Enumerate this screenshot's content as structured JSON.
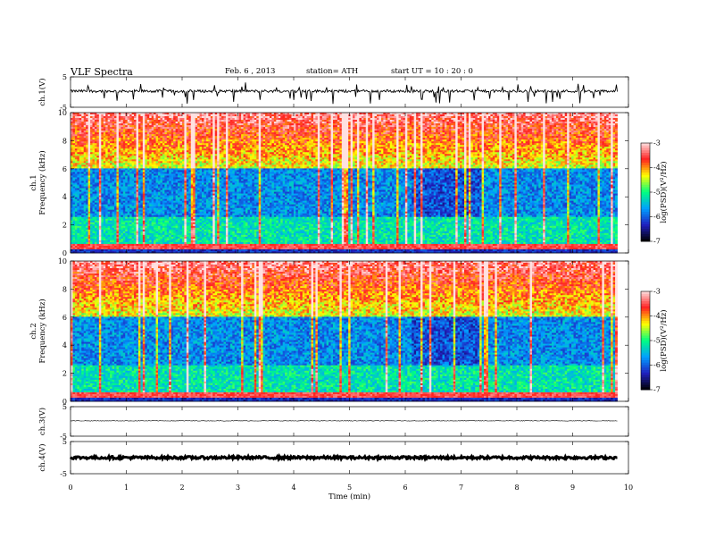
{
  "header": {
    "title": "VLF  Spectra",
    "date": "Feb. 6  , 2013",
    "station": "station= ATH",
    "start": "start  UT  =    10 : 20 : 0"
  },
  "chart_data": [
    {
      "type": "line",
      "name": "ch1-waveform",
      "ylabel": "ch.1(V)",
      "ylim": [
        -5,
        5
      ],
      "yticks": [
        "5",
        "-5"
      ],
      "xlim": [
        0,
        10
      ],
      "x_end": 9.8,
      "baseline": 0.3
    },
    {
      "type": "heatmap",
      "name": "ch1-spectrogram",
      "ylabel": "ch.1\nFrequency (kHz)",
      "ylim": [
        0,
        10
      ],
      "yticks": [
        "0",
        "2",
        "4",
        "6",
        "8",
        "10"
      ],
      "xlim": [
        0,
        10
      ],
      "x_end": 9.8,
      "colorbar": {
        "label": "log(PSD)(V²/Hz)",
        "range": [
          -7,
          -3
        ],
        "ticks": [
          "-3",
          "-4",
          "-5",
          "-6",
          "-7"
        ]
      }
    },
    {
      "type": "heatmap",
      "name": "ch2-spectrogram",
      "ylabel": "ch.2\nFrequency (kHz)",
      "ylim": [
        0,
        10
      ],
      "yticks": [
        "0",
        "2",
        "4",
        "6",
        "8",
        "10"
      ],
      "xlim": [
        0,
        10
      ],
      "x_end": 9.8,
      "colorbar": {
        "label": "log(PSD)(V²/Hz)",
        "range": [
          -7,
          -3
        ],
        "ticks": [
          "-3",
          "-4",
          "-5",
          "-6",
          "-7"
        ]
      }
    },
    {
      "type": "line",
      "name": "ch3-waveform",
      "ylabel": "ch.3(V)",
      "ylim": [
        -5,
        5
      ],
      "yticks": [
        "5",
        "-5"
      ],
      "xlim": [
        0,
        10
      ],
      "x_end": 9.8,
      "baseline": 0.2
    },
    {
      "type": "line",
      "name": "ch4-waveform",
      "ylabel": "ch.4(V)",
      "ylim": [
        -5,
        5
      ],
      "yticks": [
        "5",
        "-5"
      ],
      "xlim": [
        0,
        10
      ],
      "x_end": 9.8,
      "baseline": 0.0
    }
  ],
  "xaxis": {
    "label": "Time  (min)",
    "ticks": [
      "0",
      "1",
      "2",
      "3",
      "4",
      "5",
      "6",
      "7",
      "8",
      "9",
      "10"
    ]
  },
  "colors": {
    "cmap": [
      "#000000",
      "#2020c0",
      "#00a0ff",
      "#00ff80",
      "#ffff00",
      "#ff2020",
      "#ffe0e0"
    ]
  }
}
